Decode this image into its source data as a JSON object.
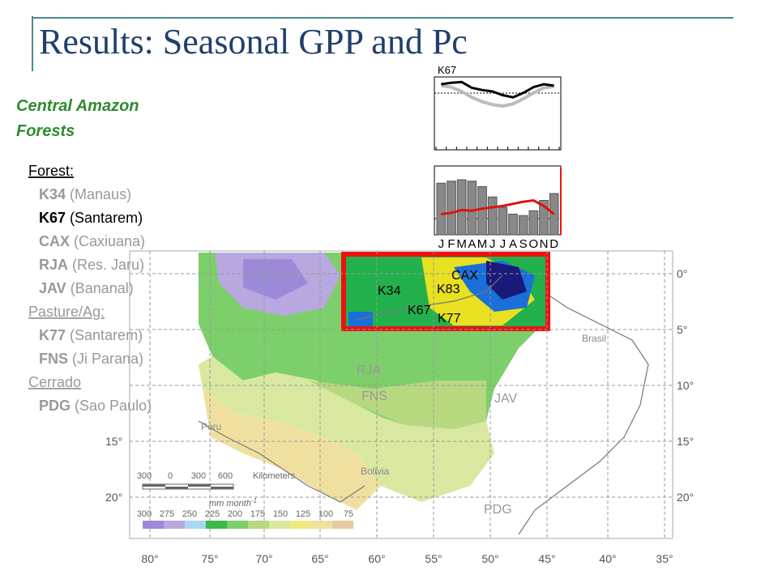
{
  "title": "Results: Seasonal GPP and Pc",
  "subtitle": [
    "Central Amazon",
    "Forests"
  ],
  "site_list": [
    {
      "heading": "Forest:",
      "sites": [
        {
          "code": "K34",
          "name": "(Manaus)"
        },
        {
          "code": "K67",
          "name": "(Santarem)"
        },
        {
          "code": "CAX",
          "name": "(Caxiuana)"
        },
        {
          "code": "RJA",
          "name": "(Res. Jaru)"
        },
        {
          "code": "JAV",
          "name": "(Bananal)"
        }
      ]
    },
    {
      "heading": "Pasture/Ag:",
      "sites": [
        {
          "code": "K77",
          "name": "(Santarem)"
        },
        {
          "code": "FNS",
          "name": "(Ji Parana)"
        }
      ]
    },
    {
      "heading": "Cerrado",
      "sites": [
        {
          "code": "PDG",
          "name": "(Sao Paulo)"
        }
      ]
    }
  ],
  "map": {
    "site_labels": [
      "K34",
      "K67",
      "K83",
      "K77",
      "CAX",
      "RJA",
      "FNS",
      "JAV",
      "PDG"
    ],
    "country_labels": [
      "Brasil",
      "Peru",
      "Bolivia"
    ],
    "latitude_labels_right": [
      "0°",
      "5°",
      "10°",
      "15°",
      "20°"
    ],
    "latitude_labels_left": [
      "15°",
      "20°"
    ],
    "longitude_labels": [
      "80°",
      "75°",
      "70°",
      "65°",
      "60°",
      "55°",
      "50°",
      "45°",
      "40°",
      "35°"
    ],
    "scale": {
      "ticks": [
        "300",
        "0",
        "300",
        "600"
      ],
      "unit": "Kilometers"
    },
    "legend": {
      "unit": "mm month",
      "unit_exponent": "-1",
      "values": [
        "300",
        "275",
        "250",
        "225",
        "200",
        "175",
        "150",
        "125",
        "100",
        "75"
      ]
    }
  },
  "inset": {
    "site": "K67",
    "months": [
      "J",
      "F",
      "M",
      "A",
      "M",
      "J",
      "J",
      "A",
      "S",
      "O",
      "N",
      "D"
    ],
    "top": {
      "black": [
        90,
        92,
        93,
        85,
        82,
        80,
        75,
        72,
        78,
        86,
        90,
        88
      ],
      "gray": [
        88,
        86,
        80,
        72,
        66,
        62,
        60,
        63,
        70,
        78,
        85,
        87
      ]
    },
    "bottom": {
      "bars": [
        75,
        78,
        80,
        78,
        70,
        55,
        40,
        30,
        28,
        35,
        50,
        60
      ],
      "red": [
        30,
        32,
        36,
        35,
        38,
        40,
        42,
        45,
        48,
        50,
        42,
        30
      ]
    }
  }
}
